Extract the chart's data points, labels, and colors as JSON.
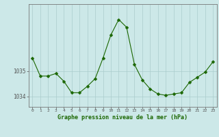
{
  "hours": [
    0,
    1,
    2,
    3,
    4,
    5,
    6,
    7,
    8,
    9,
    10,
    11,
    12,
    13,
    14,
    15,
    16,
    17,
    18,
    19,
    20,
    21,
    22,
    23
  ],
  "pressure": [
    1035.5,
    1034.8,
    1034.8,
    1034.9,
    1034.6,
    1034.15,
    1034.15,
    1034.4,
    1034.7,
    1035.5,
    1036.4,
    1037.0,
    1036.7,
    1035.25,
    1034.65,
    1034.3,
    1034.1,
    1034.05,
    1034.1,
    1034.15,
    1034.55,
    1034.75,
    1034.95,
    1035.35
  ],
  "line_color": "#1a6600",
  "marker": "D",
  "marker_size": 2.5,
  "background_color": "#cce8e8",
  "grid_color": "#aacccc",
  "axis_label_color": "#1a6600",
  "tick_color": "#555555",
  "xlabel": "Graphe pression niveau de la mer (hPa)",
  "ylim_min": 1033.6,
  "ylim_max": 1037.6,
  "yticks": [
    1034,
    1035
  ],
  "xlim_min": -0.5,
  "xlim_max": 23.5,
  "spine_color": "#777777"
}
